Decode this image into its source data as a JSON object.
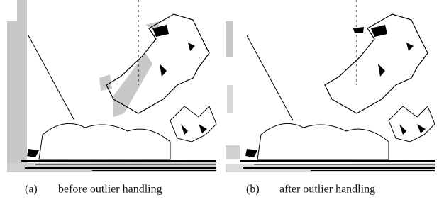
{
  "figure": {
    "panels": [
      {
        "label": "(a)",
        "caption": "before outlier handling"
      },
      {
        "label": "(b)",
        "caption": "after outlier handling"
      }
    ]
  }
}
